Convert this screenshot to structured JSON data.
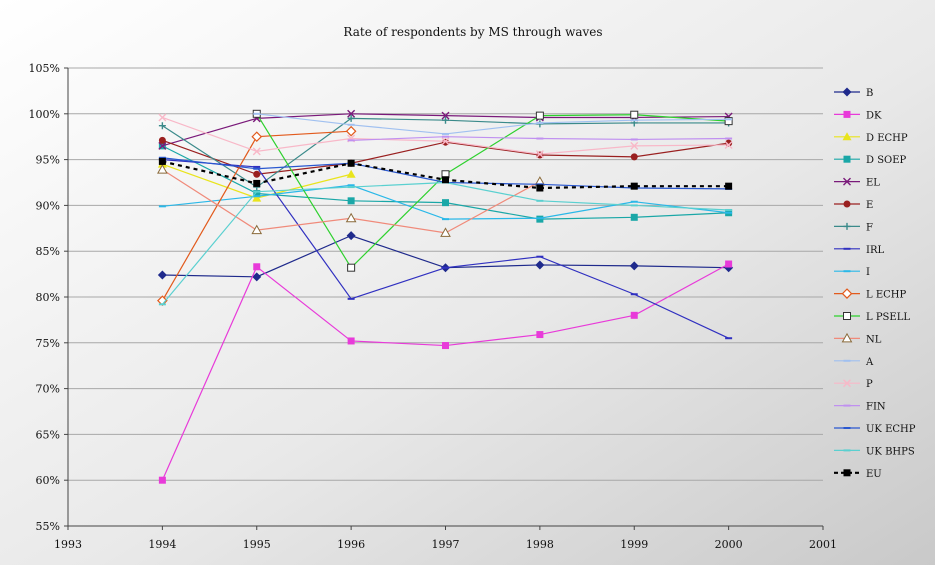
{
  "chart_data": {
    "type": "line",
    "title": "Rate of respondents by MS through waves",
    "xlabel": "",
    "ylabel": "",
    "xlim": [
      1993,
      2001
    ],
    "ylim": [
      55,
      105
    ],
    "x_ticks": [
      "1993",
      "1994",
      "1995",
      "1996",
      "1997",
      "1998",
      "1999",
      "2000",
      "2001"
    ],
    "y_ticks": [
      "55%",
      "60%",
      "65%",
      "70%",
      "75%",
      "80%",
      "85%",
      "90%",
      "95%",
      "100%",
      "105%"
    ],
    "grid": "horizontal",
    "legend": "right",
    "series": [
      {
        "name": "B",
        "color": "#1f2a8c",
        "marker": "diamond",
        "x": [
          1994,
          1995,
          1996,
          1997,
          1998,
          1999,
          2000
        ],
        "values": [
          82.4,
          82.2,
          86.7,
          83.2,
          83.5,
          83.4,
          83.2
        ]
      },
      {
        "name": "DK",
        "color": "#e83ad9",
        "marker": "square",
        "x": [
          1994,
          1995,
          1996,
          1997,
          1998,
          1999,
          2000
        ],
        "values": [
          60.0,
          83.3,
          75.2,
          74.7,
          75.9,
          78.0,
          83.6
        ]
      },
      {
        "name": "D ECHP",
        "color": "#e9e41c",
        "marker": "triangle",
        "x": [
          1994,
          1995,
          1996
        ],
        "values": [
          94.5,
          90.8,
          93.4
        ]
      },
      {
        "name": "D SOEP",
        "color": "#1aa7a7",
        "marker": "square",
        "x": [
          1994,
          1995,
          1996,
          1997,
          1998,
          1999,
          2000
        ],
        "values": [
          96.5,
          91.3,
          90.5,
          90.3,
          88.5,
          88.7,
          89.2
        ]
      },
      {
        "name": "EL",
        "color": "#7a1a7a",
        "marker": "x",
        "x": [
          1994,
          1995,
          1996,
          1997,
          1998,
          1999,
          2000
        ],
        "values": [
          96.5,
          99.5,
          100.0,
          99.8,
          99.6,
          99.6,
          99.7
        ]
      },
      {
        "name": "E",
        "color": "#9a2020",
        "marker": "circle",
        "x": [
          1994,
          1995,
          1996,
          1997,
          1998,
          1999,
          2000
        ],
        "values": [
          97.1,
          93.4,
          94.6,
          96.9,
          95.5,
          95.3,
          96.8
        ]
      },
      {
        "name": "F",
        "color": "#3a8a8a",
        "marker": "plus",
        "x": [
          1994,
          1995,
          1996,
          1997,
          1998,
          1999,
          2000
        ],
        "values": [
          98.7,
          92.0,
          99.5,
          99.3,
          98.9,
          99.0,
          99.0
        ]
      },
      {
        "name": "IRL",
        "color": "#3030c0",
        "marker": "dash",
        "x": [
          1994,
          1995,
          1996,
          1997,
          1998,
          1999,
          2000
        ],
        "values": [
          95.0,
          94.2,
          79.8,
          83.2,
          84.4,
          80.3,
          75.5
        ]
      },
      {
        "name": "I",
        "color": "#2ab8e8",
        "marker": "dash",
        "x": [
          1994,
          1995,
          1996,
          1997,
          1998,
          1999,
          2000
        ],
        "values": [
          89.9,
          91.0,
          92.2,
          88.5,
          88.6,
          90.4,
          89.2
        ]
      },
      {
        "name": "L ECHP",
        "color": "#e25a1c",
        "marker": "diamond-open",
        "x": [
          1994,
          1995,
          1996
        ],
        "values": [
          79.6,
          97.5,
          98.1
        ]
      },
      {
        "name": "L PSELL",
        "color": "#2ed12e",
        "marker": "square-open",
        "x": [
          1995,
          1996,
          1997,
          1998,
          1999,
          2000
        ],
        "values": [
          100.0,
          83.2,
          93.4,
          99.8,
          99.9,
          99.2
        ]
      },
      {
        "name": "NL",
        "color": "#f08a7a",
        "marker": "triangle-open",
        "x": [
          1994,
          1995,
          1996,
          1997,
          1998
        ],
        "values": [
          93.9,
          87.3,
          88.6,
          87.0,
          92.6
        ]
      },
      {
        "name": "A",
        "color": "#a0c0f0",
        "marker": "dash",
        "x": [
          1995,
          1996,
          1997,
          1998,
          1999,
          2000
        ],
        "values": [
          100.0,
          98.8,
          97.8,
          99.0,
          99.3,
          99.4
        ]
      },
      {
        "name": "P",
        "color": "#f8b8c8",
        "marker": "x",
        "x": [
          1994,
          1995,
          1996,
          1997,
          1998,
          1999,
          2000
        ],
        "values": [
          99.6,
          95.9,
          97.3,
          97.0,
          95.6,
          96.5,
          96.6
        ]
      },
      {
        "name": "FIN",
        "color": "#c090f0",
        "marker": "dash",
        "x": [
          1996,
          1997,
          1998,
          1999,
          2000
        ],
        "values": [
          97.1,
          97.5,
          97.3,
          97.2,
          97.3
        ]
      },
      {
        "name": "UK ECHP",
        "color": "#2a58d0",
        "marker": "dash",
        "x": [
          1994,
          1995,
          1996,
          1997,
          1998,
          1999,
          2000
        ],
        "values": [
          95.2,
          94.0,
          94.6,
          92.5,
          92.3,
          91.9,
          91.8
        ]
      },
      {
        "name": "UK BHPS",
        "color": "#5ad0d0",
        "marker": "dash",
        "x": [
          1994,
          1995,
          1996,
          1997,
          1998,
          1999,
          2000
        ],
        "values": [
          79.2,
          91.5,
          92.0,
          92.5,
          90.5,
          90.0,
          89.5
        ]
      },
      {
        "name": "EU",
        "color": "#000000",
        "marker": "square",
        "dashed": true,
        "x": [
          1994,
          1995,
          1996,
          1997,
          1998,
          1999,
          2000
        ],
        "values": [
          94.8,
          92.4,
          94.6,
          92.8,
          91.9,
          92.1,
          92.1
        ]
      }
    ]
  }
}
